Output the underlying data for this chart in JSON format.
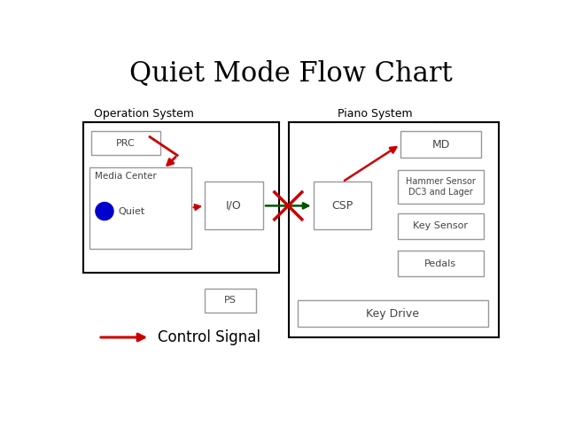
{
  "title": "Quiet Mode Flow Chart",
  "title_fontsize": 22,
  "background_color": "#ffffff",
  "op_system_label": "Operation System",
  "piano_system_label": "Piano System",
  "media_center_label": "Media Center",
  "quiet_label": "Quiet",
  "io_label": "I/O",
  "csp_label": "CSP",
  "md_label": "MD",
  "hammer_label": "Hammer Sensor\nDC3 and Lager",
  "key_sensor_label": "Key Sensor",
  "pedals_label": "Pedals",
  "key_drive_label": "Key Drive",
  "ps_label": "PS",
  "prc_label": "PRC",
  "control_signal_label": "Control Signal",
  "dot_color": "#0000cc",
  "red": "#cc0000",
  "green": "#005500",
  "box_edge_color": "#999999",
  "text_color": "#444444",
  "dark_text": "#222222"
}
